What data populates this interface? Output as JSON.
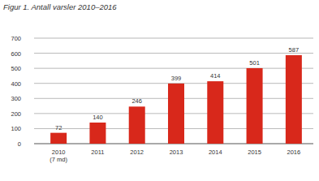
{
  "chart_data": {
    "type": "bar",
    "title": "Figur 1. Antall varsler 2010–2016",
    "categories": [
      "2010 (7 md)",
      "2011",
      "2012",
      "2013",
      "2014",
      "2015",
      "2016"
    ],
    "values": [
      72,
      140,
      246,
      399,
      414,
      501,
      587
    ],
    "color": "#d8281b",
    "ylim": [
      0,
      700
    ],
    "yticks": [
      0,
      100,
      200,
      300,
      400,
      500,
      600,
      700
    ],
    "grid": true,
    "data_labels": true
  }
}
